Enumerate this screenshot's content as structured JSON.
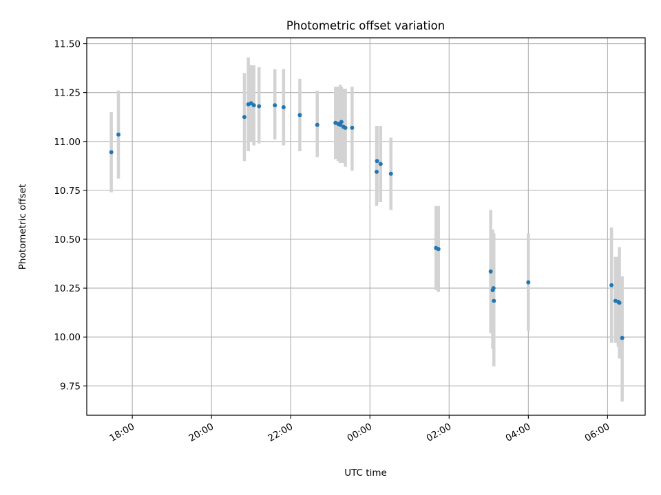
{
  "chart_data": {
    "type": "scatter",
    "title": "Photometric offset variation",
    "xlabel": "UTC time",
    "ylabel": "Photometric offset",
    "x_unit": "UTC time (hours, continuing past midnight)",
    "xlim": [
      16.85,
      30.95
    ],
    "ylim": [
      9.6,
      11.53
    ],
    "grid": true,
    "x_ticks": [
      {
        "value": 18,
        "label": "18:00"
      },
      {
        "value": 20,
        "label": "20:00"
      },
      {
        "value": 22,
        "label": "22:00"
      },
      {
        "value": 24,
        "label": "00:00"
      },
      {
        "value": 26,
        "label": "02:00"
      },
      {
        "value": 28,
        "label": "04:00"
      },
      {
        "value": 30,
        "label": "06:00"
      }
    ],
    "y_ticks": [
      {
        "value": 9.75,
        "label": "9.75"
      },
      {
        "value": 10.0,
        "label": "10.00"
      },
      {
        "value": 10.25,
        "label": "10.25"
      },
      {
        "value": 10.5,
        "label": "10.50"
      },
      {
        "value": 10.75,
        "label": "10.75"
      },
      {
        "value": 11.0,
        "label": "11.00"
      },
      {
        "value": 11.25,
        "label": "11.25"
      },
      {
        "value": 11.5,
        "label": "11.50"
      }
    ],
    "colors": {
      "points": "#1f77b4",
      "error_bars": "#d3d3d3",
      "grid": "#b0b0b0"
    },
    "points": [
      {
        "x": 17.47,
        "y": 10.945,
        "ylow": 10.74,
        "yhigh": 11.15
      },
      {
        "x": 17.65,
        "y": 11.035,
        "ylow": 10.81,
        "yhigh": 11.26
      },
      {
        "x": 20.83,
        "y": 11.125,
        "ylow": 10.9,
        "yhigh": 11.35
      },
      {
        "x": 20.93,
        "y": 11.19,
        "ylow": 10.95,
        "yhigh": 11.43
      },
      {
        "x": 21.0,
        "y": 11.195,
        "ylow": 11.0,
        "yhigh": 11.39
      },
      {
        "x": 21.07,
        "y": 11.185,
        "ylow": 10.98,
        "yhigh": 11.39
      },
      {
        "x": 21.2,
        "y": 11.18,
        "ylow": 10.99,
        "yhigh": 11.38
      },
      {
        "x": 21.6,
        "y": 11.185,
        "ylow": 11.01,
        "yhigh": 11.37
      },
      {
        "x": 21.82,
        "y": 11.175,
        "ylow": 10.98,
        "yhigh": 11.37
      },
      {
        "x": 22.23,
        "y": 11.135,
        "ylow": 10.95,
        "yhigh": 11.32
      },
      {
        "x": 22.67,
        "y": 11.085,
        "ylow": 10.92,
        "yhigh": 11.26
      },
      {
        "x": 23.13,
        "y": 11.095,
        "ylow": 10.91,
        "yhigh": 11.28
      },
      {
        "x": 23.2,
        "y": 11.09,
        "ylow": 10.9,
        "yhigh": 11.28
      },
      {
        "x": 23.25,
        "y": 11.085,
        "ylow": 10.89,
        "yhigh": 11.29
      },
      {
        "x": 23.28,
        "y": 11.1,
        "ylow": 10.91,
        "yhigh": 11.28
      },
      {
        "x": 23.33,
        "y": 11.075,
        "ylow": 10.89,
        "yhigh": 11.27
      },
      {
        "x": 23.38,
        "y": 11.07,
        "ylow": 10.87,
        "yhigh": 11.27
      },
      {
        "x": 23.55,
        "y": 11.07,
        "ylow": 10.85,
        "yhigh": 11.28
      },
      {
        "x": 24.17,
        "y": 10.845,
        "ylow": 10.67,
        "yhigh": 11.08
      },
      {
        "x": 24.18,
        "y": 10.9,
        "ylow": 10.69,
        "yhigh": 11.08
      },
      {
        "x": 24.27,
        "y": 10.885,
        "ylow": 10.69,
        "yhigh": 11.08
      },
      {
        "x": 24.53,
        "y": 10.835,
        "ylow": 10.65,
        "yhigh": 11.02
      },
      {
        "x": 25.67,
        "y": 10.455,
        "ylow": 10.24,
        "yhigh": 10.67
      },
      {
        "x": 25.73,
        "y": 10.45,
        "ylow": 10.23,
        "yhigh": 10.67
      },
      {
        "x": 27.05,
        "y": 10.335,
        "ylow": 10.02,
        "yhigh": 10.65
      },
      {
        "x": 27.1,
        "y": 10.24,
        "ylow": 9.94,
        "yhigh": 10.55
      },
      {
        "x": 27.12,
        "y": 10.25,
        "ylow": 10.0,
        "yhigh": 10.52
      },
      {
        "x": 27.13,
        "y": 10.185,
        "ylow": 9.85,
        "yhigh": 10.53
      },
      {
        "x": 28.0,
        "y": 10.28,
        "ylow": 10.03,
        "yhigh": 10.53
      },
      {
        "x": 30.1,
        "y": 10.265,
        "ylow": 9.97,
        "yhigh": 10.56
      },
      {
        "x": 30.2,
        "y": 10.185,
        "ylow": 9.97,
        "yhigh": 10.41
      },
      {
        "x": 30.27,
        "y": 10.18,
        "ylow": 9.95,
        "yhigh": 10.41
      },
      {
        "x": 30.3,
        "y": 10.175,
        "ylow": 9.89,
        "yhigh": 10.46
      },
      {
        "x": 30.37,
        "y": 9.995,
        "ylow": 9.67,
        "yhigh": 10.31
      }
    ]
  }
}
